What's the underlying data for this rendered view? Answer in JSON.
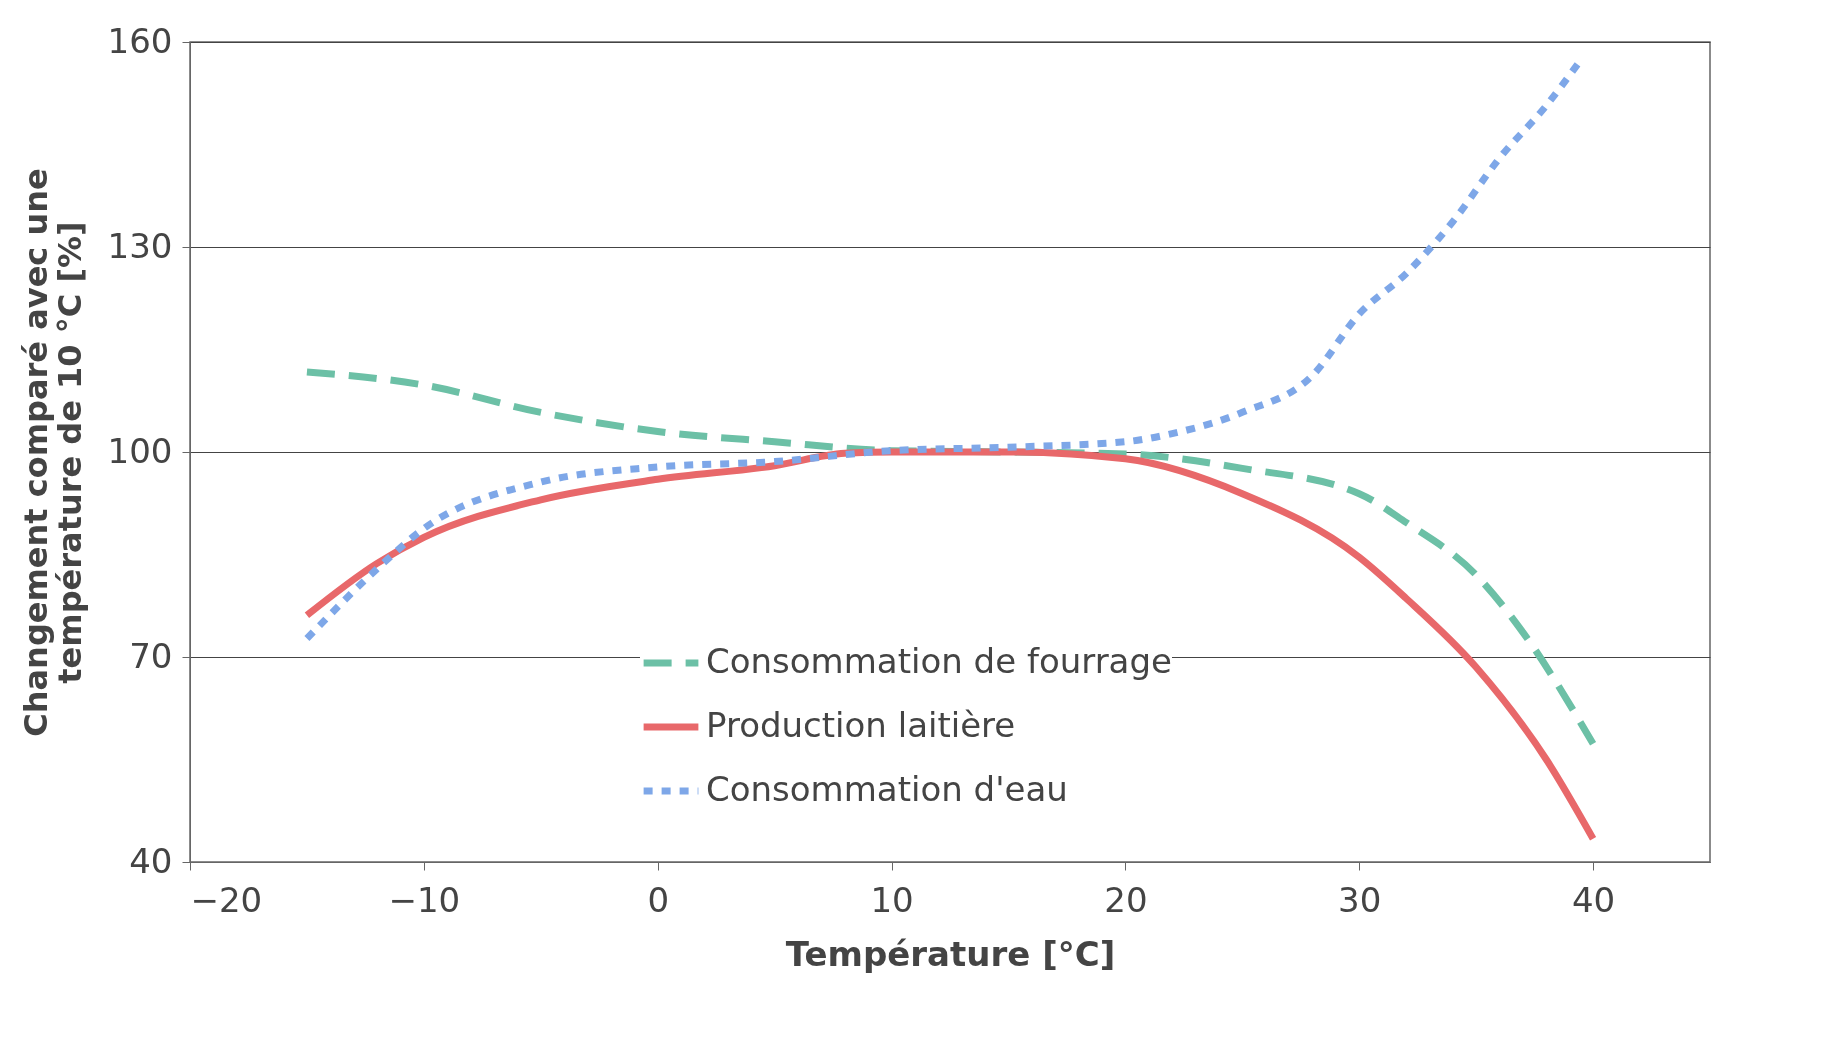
{
  "chart_data": {
    "type": "line",
    "xlabel": "Température [°C]",
    "ylabel": "Changement comparé avec une\ntempérature de 10 °C [%]",
    "xlim": [
      -20,
      45
    ],
    "xticks": [
      -20,
      -10,
      0,
      10,
      20,
      30,
      40
    ],
    "ylim": [
      40,
      160
    ],
    "yticks": [
      40,
      70,
      100,
      130,
      160
    ],
    "grid": "y",
    "legend": "bottom",
    "series": [
      {
        "name": "Consommation de fourrage",
        "color": "#6cc0a6",
        "line_style": "dashed",
        "x": [
          -15,
          -10,
          -5,
          0,
          5,
          10,
          15,
          20,
          25,
          30,
          32,
          35,
          37,
          40
        ],
        "values": [
          111.7,
          109.8,
          105.8,
          103,
          101.5,
          100.2,
          100,
          99.7,
          97.6,
          93.9,
          89.7,
          82,
          73.6,
          57.3
        ]
      },
      {
        "name": "Production laitière",
        "color": "#e8686a",
        "line_style": "solid",
        "x": [
          -15,
          -12,
          -10,
          -5,
          0,
          5,
          8,
          10,
          15,
          20,
          25,
          30,
          32,
          35,
          38,
          40
        ],
        "values": [
          76.1,
          83.7,
          87.5,
          93,
          96,
          98,
          99.8,
          100,
          100,
          99,
          93.9,
          84.6,
          78.6,
          68.5,
          55,
          43.4
        ]
      },
      {
        "name": "Consommation d'eau",
        "color": "#7ea7e8",
        "line_style": "dotted",
        "x": [
          -15,
          -12,
          -10,
          -5,
          0,
          5,
          10,
          15,
          20,
          22,
          25,
          28,
          30,
          32,
          34,
          36,
          38,
          39.5
        ],
        "values": [
          72.7,
          82.9,
          88.8,
          95.6,
          97.8,
          98.6,
          100.2,
          100.7,
          101.5,
          102.7,
          105.8,
          111.2,
          120.2,
          126.1,
          133.7,
          143,
          150.7,
          157.5
        ]
      }
    ]
  }
}
